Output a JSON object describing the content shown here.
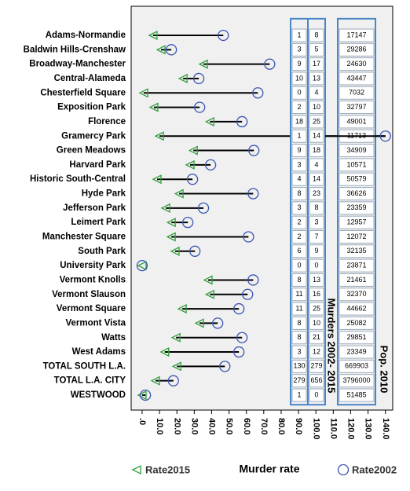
{
  "chart_data": {
    "type": "dotplot",
    "categories": [
      "Adams-Normandie",
      "Baldwin Hills-Crenshaw",
      "Broadway-Manchester",
      "Central-Alameda",
      "Chesterfield Square",
      "Exposition Park",
      "Florence",
      "Gramercy Park",
      "Green Meadows",
      "Harvard Park",
      "Historic South-Central",
      "Hyde Park",
      "Jefferson Park",
      "Leimert Park",
      "Manchester Square",
      "South Park",
      "University Park",
      "Vermont Knolls",
      "Vermont Slauson",
      "Vermont Square",
      "Vermont Vista",
      "Watts",
      "West Adams",
      "TOTAL SOUTH L.A.",
      "TOTAL L.A. CITY",
      "WESTWOOD"
    ],
    "series": [
      {
        "name": "Rate2015",
        "color": "#2e9e3a",
        "marker": "triangle",
        "values": [
          6.3,
          10.9,
          35.3,
          23.6,
          0.9,
          6.8,
          39,
          10,
          29.5,
          27.6,
          8.6,
          21.3,
          13.6,
          16.8,
          16.8,
          19,
          0,
          38,
          39,
          23.1,
          33,
          19.5,
          13,
          20,
          7.7,
          0
        ]
      },
      {
        "name": "Rate2002",
        "color": "#3a55b4",
        "marker": "circle",
        "values": [
          46.7,
          16.8,
          73.4,
          32.6,
          66.6,
          33.1,
          57.5,
          140,
          64.3,
          39.4,
          29,
          63.9,
          35.3,
          26.3,
          61.2,
          30.4,
          0,
          63.9,
          60.7,
          55.7,
          43.5,
          57.5,
          55.7,
          47.6,
          18,
          1.9
        ]
      }
    ],
    "x_label": "Murder rate",
    "xlim": [
      -6.3,
      144.2
    ],
    "xticks": [
      {
        "value": 0,
        "label": ".0"
      },
      {
        "value": 10,
        "label": "10.0"
      },
      {
        "value": 20,
        "label": "20.0"
      },
      {
        "value": 30,
        "label": "30.0"
      },
      {
        "value": 40,
        "label": "40.0"
      },
      {
        "value": 50,
        "label": "50.0"
      },
      {
        "value": 60,
        "label": "60.0"
      },
      {
        "value": 70,
        "label": "70.0"
      },
      {
        "value": 80,
        "label": "80.0"
      },
      {
        "value": 90,
        "label": "90.0"
      },
      {
        "value": 100,
        "label": "100.0"
      },
      {
        "value": 110,
        "label": "110.0"
      },
      {
        "value": 120,
        "label": "120.0"
      },
      {
        "value": 130,
        "label": "130.0"
      },
      {
        "value": 140,
        "label": "140.0"
      }
    ],
    "table_murders": {
      "label": "Murders 2002- 2015",
      "columns": [
        [
          1,
          3,
          9,
          10,
          0,
          2,
          18,
          1,
          9,
          3,
          4,
          8,
          3,
          2,
          2,
          6,
          0,
          8,
          11,
          11,
          8,
          8,
          3,
          130,
          279,
          1
        ],
        [
          8,
          5,
          17,
          13,
          4,
          10,
          25,
          14,
          18,
          4,
          14,
          23,
          8,
          3,
          7,
          9,
          0,
          13,
          16,
          25,
          10,
          21,
          12,
          279,
          656,
          0
        ]
      ]
    },
    "table_population": {
      "label": "Pop. 2010",
      "values": [
        17147,
        29286,
        24630,
        43447,
        7032,
        32797,
        49001,
        11713,
        34909,
        10571,
        50579,
        36626,
        23359,
        12957,
        12072,
        32135,
        23871,
        21461,
        32370,
        44662,
        25082,
        29851,
        23349,
        669903,
        3796000,
        51485
      ]
    }
  }
}
